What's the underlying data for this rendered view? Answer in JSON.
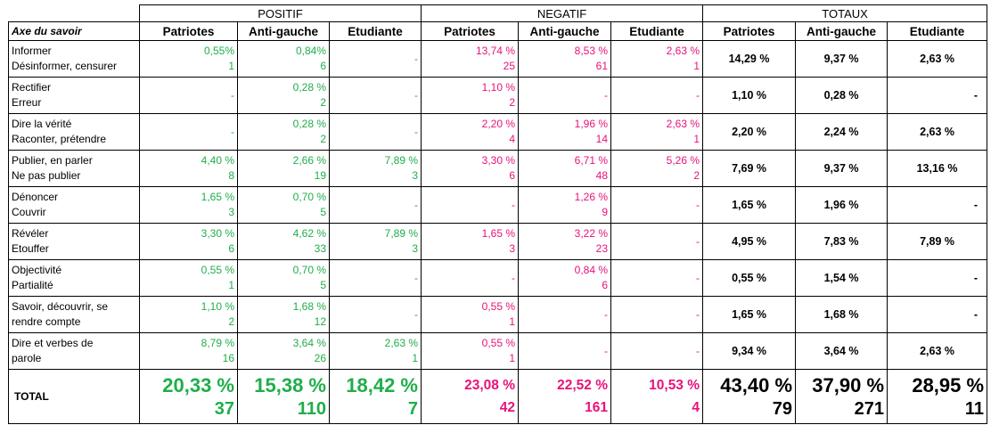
{
  "groups": [
    "POSITIF",
    "NEGATIF",
    "TOTAUX"
  ],
  "header": {
    "axis_label": "Axe du savoir",
    "columns": [
      "Patriotes",
      "Anti-gauche",
      "Etudiante",
      "Patriotes",
      "Anti-gauche",
      "Etudiante",
      "Patriotes",
      "Anti-gauche",
      "Etudiante"
    ]
  },
  "rows": [
    {
      "label": [
        "Informer",
        "Désinformer, censurer"
      ],
      "positif": [
        {
          "pct": "0,55%",
          "n": "1"
        },
        {
          "pct": "0,84%",
          "n": "6"
        },
        {
          "dash": "-"
        }
      ],
      "negatif": [
        {
          "pct": "13,74 %",
          "n": "25"
        },
        {
          "pct": "8,53 %",
          "n": "61"
        },
        {
          "pct": "2,63 %",
          "n": "1"
        }
      ],
      "totaux": [
        "14,29 %",
        "9,37 %",
        "2,63 %"
      ]
    },
    {
      "label": [
        "Rectifier",
        "Erreur"
      ],
      "positif": [
        {
          "dash": "-"
        },
        {
          "pct": "0,28 %",
          "n": "2"
        },
        {
          "dash": "-"
        }
      ],
      "negatif": [
        {
          "pct": "1,10 %",
          "n": "2"
        },
        {
          "dash": "-"
        },
        {
          "dash": "-"
        }
      ],
      "totaux": [
        "1,10 %",
        "0,28 %",
        "-"
      ]
    },
    {
      "label": [
        "Dire la vérité",
        "Raconter, prétendre"
      ],
      "positif": [
        {
          "dash": "-"
        },
        {
          "pct": "0,28 %",
          "n": "2"
        },
        {
          "dash": "-"
        }
      ],
      "negatif": [
        {
          "pct": "2,20 %",
          "n": "4"
        },
        {
          "pct": "1,96 %",
          "n": "14"
        },
        {
          "pct": "2,63 %",
          "n": "1"
        }
      ],
      "totaux": [
        "2,20 %",
        "2,24 %",
        "2,63 %"
      ]
    },
    {
      "label": [
        "Publier, en parler",
        "Ne pas publier"
      ],
      "positif": [
        {
          "pct": "4,40 %",
          "n": "8"
        },
        {
          "pct": "2,66 %",
          "n": "19"
        },
        {
          "pct": "7,89 %",
          "n": "3"
        }
      ],
      "negatif": [
        {
          "pct": "3,30 %",
          "n": "6"
        },
        {
          "pct": "6,71 %",
          "n": "48"
        },
        {
          "pct": "5,26 %",
          "n": "2"
        }
      ],
      "totaux": [
        "7,69 %",
        "9,37 %",
        "13,16 %"
      ]
    },
    {
      "label": [
        "Dénoncer",
        "Couvrir"
      ],
      "positif": [
        {
          "pct": "1,65 %",
          "n": "3"
        },
        {
          "pct": "0,70 %",
          "n": "5"
        },
        {
          "dash": "-"
        }
      ],
      "negatif": [
        {
          "dash": "-"
        },
        {
          "pct": "1,26 %",
          "n": "9"
        },
        {
          "dash": "-"
        }
      ],
      "totaux": [
        "1,65 %",
        "1,96 %",
        "-"
      ]
    },
    {
      "label": [
        "Révéler",
        "Etouffer"
      ],
      "positif": [
        {
          "pct": "3,30 %",
          "n": "6"
        },
        {
          "pct": "4,62 %",
          "n": "33"
        },
        {
          "pct": "7,89 %",
          "n": "3"
        }
      ],
      "negatif": [
        {
          "pct": "1,65 %",
          "n": "3"
        },
        {
          "pct": "3,22 %",
          "n": "23"
        },
        {
          "dash": "-"
        }
      ],
      "totaux": [
        "4,95 %",
        "7,83 %",
        "7,89 %"
      ]
    },
    {
      "label": [
        "Objectivité",
        "Partialité"
      ],
      "positif": [
        {
          "pct": "0,55 %",
          "n": "1"
        },
        {
          "pct": "0,70 %",
          "n": "5"
        },
        {
          "dash": "-"
        }
      ],
      "negatif": [
        {
          "dash": "-"
        },
        {
          "pct": "0,84 %",
          "n": "6"
        },
        {
          "dash": "-"
        }
      ],
      "totaux": [
        "0,55 %",
        "1,54 %",
        "-"
      ]
    },
    {
      "label": [
        "Savoir, découvrir, se",
        "rendre compte"
      ],
      "positif": [
        {
          "pct": "1,10 %",
          "n": "2"
        },
        {
          "pct": "1,68 %",
          "n": "12"
        },
        {
          "dash": "-"
        }
      ],
      "negatif": [
        {
          "pct": "0,55 %",
          "n": "1"
        },
        {
          "dash": "-"
        },
        {
          "dash": "-"
        }
      ],
      "totaux": [
        "1,65 %",
        "1,68 %",
        "-"
      ]
    },
    {
      "label": [
        "Dire et verbes de",
        "parole"
      ],
      "positif": [
        {
          "pct": "8,79 %",
          "n": "16"
        },
        {
          "pct": "3,64 %",
          "n": "26"
        },
        {
          "pct": "2,63 %",
          "n": "1"
        }
      ],
      "negatif": [
        {
          "pct": "0,55 %",
          "n": "1"
        },
        {
          "dash": "-"
        },
        {
          "dash": "-"
        }
      ],
      "totaux": [
        "9,34 %",
        "3,64 %",
        "2,63 %"
      ]
    }
  ],
  "total": {
    "label": "TOTAL",
    "positif": [
      {
        "pct": "20,33 %",
        "n": "37"
      },
      {
        "pct": "15,38 %",
        "n": "110"
      },
      {
        "pct": "18,42 %",
        "n": "7"
      }
    ],
    "negatif": [
      {
        "pct": "23,08 %",
        "n": "42"
      },
      {
        "pct": "22,52 %",
        "n": "161"
      },
      {
        "pct": "10,53 %",
        "n": "4"
      }
    ],
    "totaux": [
      {
        "pct": "43,40 %",
        "n": "79"
      },
      {
        "pct": "37,90 %",
        "n": "271"
      },
      {
        "pct": "28,95 %",
        "n": "11"
      }
    ]
  },
  "colors": {
    "positif": "#1fae4a",
    "negatif": "#e8127a",
    "totaux": "#000000"
  }
}
